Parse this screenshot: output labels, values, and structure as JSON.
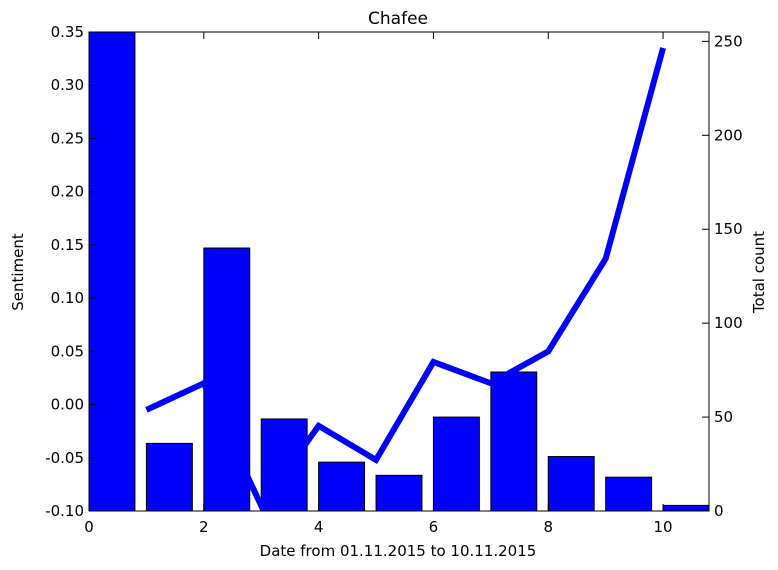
{
  "chart_data": {
    "type": "bar",
    "title": "Chafee",
    "xlabel": "Date from 01.11.2015 to 10.11.2015",
    "ylabel": "Sentiment",
    "y2label": "Total count",
    "xlim": [
      0,
      10.8
    ],
    "ylim": [
      -0.1,
      0.35
    ],
    "y2lim": [
      0,
      255
    ],
    "x_ticks": [
      0,
      2,
      4,
      6,
      8,
      10
    ],
    "y_ticks": [
      -0.1,
      -0.05,
      0.0,
      0.05,
      0.1,
      0.15,
      0.2,
      0.25,
      0.3,
      0.35
    ],
    "y2_ticks": [
      0,
      50,
      100,
      150,
      200,
      250
    ],
    "grid": false,
    "bars": {
      "axis": "right",
      "color": "#0000ff",
      "x": [
        0,
        1,
        2,
        3,
        4,
        5,
        6,
        7,
        8,
        9,
        10
      ],
      "values": [
        255,
        36,
        140,
        49,
        26,
        19,
        50,
        74,
        29,
        18,
        3
      ]
    },
    "series": [
      {
        "axis": "left",
        "color": "#0000ff",
        "x": [
          1,
          2,
          3,
          4,
          5,
          6,
          7,
          8,
          9,
          10
        ],
        "values": [
          -0.005,
          0.02,
          -0.095,
          -0.02,
          -0.052,
          0.04,
          0.02,
          0.05,
          0.137,
          0.335
        ]
      }
    ]
  }
}
